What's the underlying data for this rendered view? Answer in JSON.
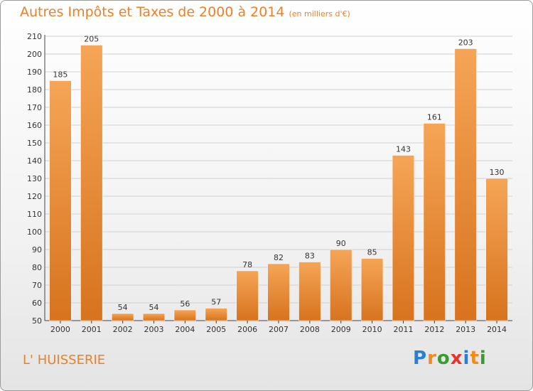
{
  "header": {
    "title": "Autres Impôts et Taxes de 2000 à 2014",
    "unit": "(en milliers d'€)"
  },
  "footer": {
    "place": "L' HUISSERIE",
    "brand_letters": [
      "P",
      "r",
      "o",
      "x",
      "i",
      "t",
      "i"
    ],
    "brand_colors": [
      "#2b7fd1",
      "#f28a1c",
      "#3a9b2f",
      "#e8322a",
      "#2b7fd1",
      "#f28a1c",
      "#3a9b2f"
    ]
  },
  "colors": {
    "accent": "#e8822a",
    "bar_top": "#f5a556",
    "bar_bottom": "#d7731e",
    "label": "#333333",
    "grid": "#d0d0d0"
  },
  "chart_data": {
    "type": "bar",
    "title": "Autres Impôts et Taxes de 2000 à 2014",
    "subtitle": "(en milliers d'€)",
    "xlabel": "",
    "ylabel": "",
    "categories": [
      "2000",
      "2001",
      "2002",
      "2003",
      "2004",
      "2005",
      "2006",
      "2007",
      "2008",
      "2009",
      "2010",
      "2011",
      "2012",
      "2013",
      "2014"
    ],
    "values": [
      185,
      205,
      54,
      54,
      56,
      57,
      78,
      82,
      83,
      90,
      85,
      143,
      161,
      203,
      130
    ],
    "ylim": [
      50,
      210
    ],
    "yticks": [
      50,
      60,
      70,
      80,
      90,
      100,
      110,
      120,
      130,
      140,
      150,
      160,
      170,
      180,
      190,
      200,
      210
    ],
    "grid": true,
    "data_labels": true
  }
}
